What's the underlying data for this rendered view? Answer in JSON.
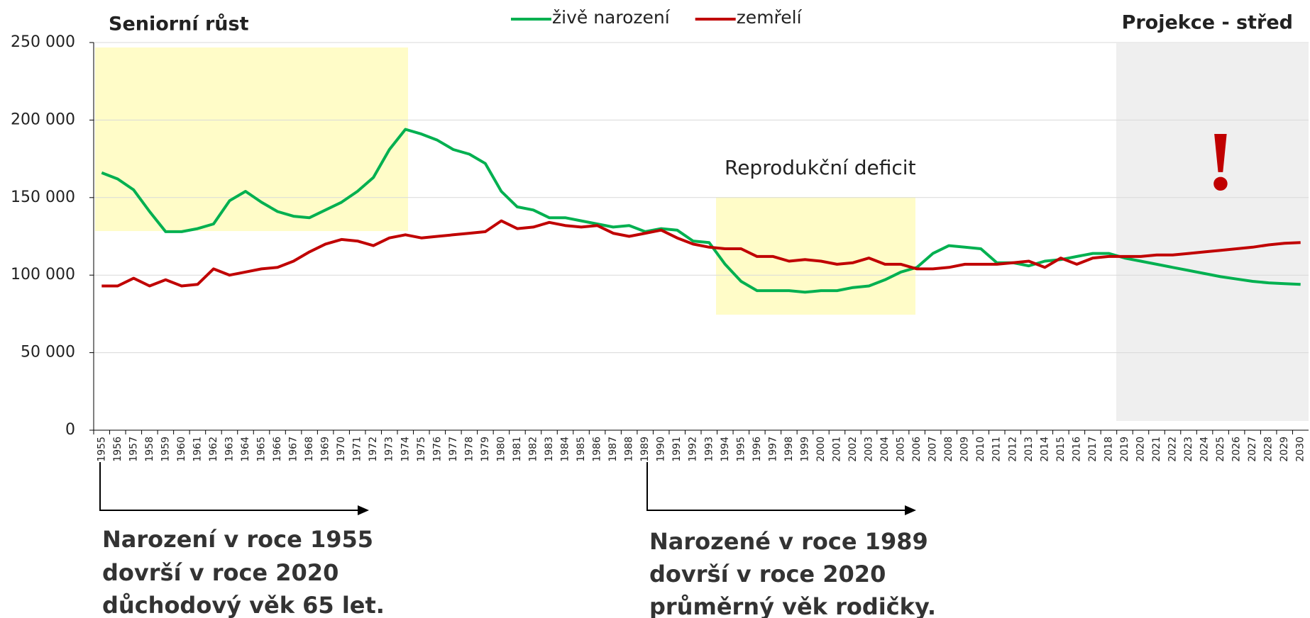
{
  "chart_data": {
    "type": "line",
    "legend_position": "top",
    "categories": [
      "1955",
      "1956",
      "1957",
      "1958",
      "1959",
      "1960",
      "1961",
      "1962",
      "1963",
      "1964",
      "1965",
      "1966",
      "1967",
      "1968",
      "1969",
      "1970",
      "1971",
      "1972",
      "1973",
      "1974",
      "1975",
      "1976",
      "1977",
      "1978",
      "1979",
      "1980",
      "1981",
      "1982",
      "1983",
      "1984",
      "1985",
      "1986",
      "1987",
      "1988",
      "1989",
      "1990",
      "1991",
      "1992",
      "1993",
      "1994",
      "1995",
      "1996",
      "1997",
      "1998",
      "1999",
      "2000",
      "2001",
      "2002",
      "2003",
      "2004",
      "2005",
      "2006",
      "2007",
      "2008",
      "2009",
      "2010",
      "2011",
      "2012",
      "2013",
      "2014",
      "2015",
      "2016",
      "2017",
      "2018",
      "2019",
      "2020",
      "2021",
      "2022",
      "2023",
      "2024",
      "2025",
      "2026",
      "2027",
      "2028",
      "2029",
      "2030"
    ],
    "series": [
      {
        "name": "živě narození",
        "color": "#00b050",
        "values": [
          166000,
          162000,
          155000,
          141000,
          128000,
          128000,
          130000,
          133000,
          148000,
          154000,
          147000,
          141000,
          138000,
          137000,
          142000,
          147000,
          154000,
          163000,
          181000,
          194000,
          191000,
          187000,
          181000,
          178000,
          172000,
          154000,
          144000,
          142000,
          137000,
          137000,
          135000,
          133000,
          131000,
          132000,
          128000,
          130000,
          129000,
          122000,
          121000,
          107000,
          96000,
          90000,
          90000,
          90000,
          89000,
          90000,
          90000,
          92000,
          93000,
          97000,
          102000,
          105000,
          114000,
          119000,
          118000,
          117000,
          108000,
          108000,
          106000,
          109000,
          110000,
          112000,
          114000,
          114000,
          111000,
          109000,
          107000,
          105000,
          103000,
          101000,
          99000,
          97500,
          96000,
          95000,
          94500,
          94000
        ]
      },
      {
        "name": "zemřelí",
        "color": "#c00000",
        "values": [
          93000,
          93000,
          98000,
          93000,
          97000,
          93000,
          94000,
          104000,
          100000,
          102000,
          104000,
          105000,
          109000,
          115000,
          120000,
          123000,
          122000,
          119000,
          124000,
          126000,
          124000,
          125000,
          126000,
          127000,
          128000,
          135000,
          130000,
          131000,
          134000,
          132000,
          131000,
          132000,
          127000,
          125000,
          127000,
          129000,
          124000,
          120000,
          118000,
          117000,
          117000,
          112000,
          112000,
          109000,
          110000,
          109000,
          107000,
          108000,
          111000,
          107000,
          107000,
          104000,
          104000,
          105000,
          107000,
          107000,
          107000,
          108000,
          109000,
          105000,
          111000,
          107000,
          111000,
          112000,
          112000,
          112000,
          113000,
          113000,
          114000,
          115000,
          116000,
          117000,
          118000,
          119500,
          120500,
          121000
        ]
      }
    ],
    "ylim": [
      0,
      250000
    ],
    "yticks": [
      0,
      {
        "value": 50000,
        "label": "50 000"
      },
      {
        "value": 100000,
        "label": "100 000"
      },
      {
        "value": 150000,
        "label": "150 000"
      },
      {
        "value": 200000,
        "label": "200 000"
      },
      {
        "value": 250000,
        "label": "250 000"
      }
    ],
    "grid": true,
    "annotations": {
      "left_title": "Seniorní růst",
      "right_title": "Projekce - střed",
      "deficit": "Reprodukční deficit",
      "exclamation": "!",
      "note_1955": [
        "Narození v roce 1955",
        "dovrší v roce 2020",
        "důchodový věk 65 let."
      ],
      "note_1989": [
        "Narozené v roce 1989",
        "dovrší v roce 2020",
        "průměrný věk rodičky."
      ]
    }
  }
}
